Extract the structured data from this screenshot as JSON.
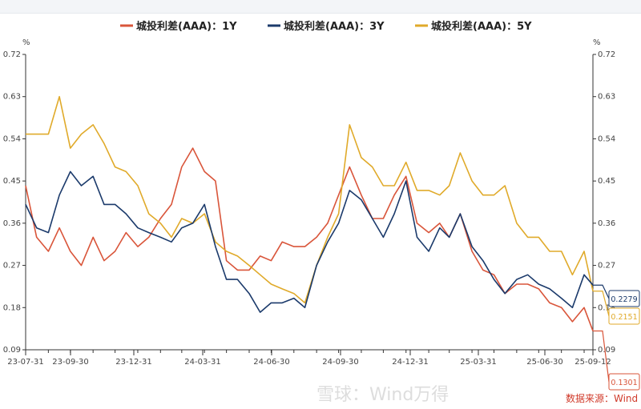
{
  "chart_data": {
    "type": "line",
    "title": "",
    "ylabel_left": "%",
    "ylabel_right": "%",
    "ylim": [
      0.09,
      0.72
    ],
    "yticks": [
      "0.09",
      "0.18",
      "0.27",
      "0.36",
      "0.45",
      "0.54",
      "0.63",
      "0.72"
    ],
    "xtick_labels": [
      "23-07-31",
      "23-09-30",
      "23-12-31",
      "24-03-31",
      "24-06-30",
      "24-09-30",
      "24-12-31",
      "25-03-31",
      "25-06-30",
      "25-09-12"
    ],
    "legend_position": "top",
    "grid": false,
    "x": [
      "2023-07-31",
      "2023-08-15",
      "2023-08-31",
      "2023-09-15",
      "2023-09-30",
      "2023-10-15",
      "2023-10-31",
      "2023-11-15",
      "2023-11-30",
      "2023-12-15",
      "2023-12-31",
      "2024-01-15",
      "2024-01-31",
      "2024-02-15",
      "2024-02-29",
      "2024-03-15",
      "2024-03-31",
      "2024-04-15",
      "2024-04-30",
      "2024-05-15",
      "2024-05-31",
      "2024-06-15",
      "2024-06-30",
      "2024-07-15",
      "2024-07-31",
      "2024-08-15",
      "2024-08-31",
      "2024-09-15",
      "2024-09-30",
      "2024-10-15",
      "2024-10-31",
      "2024-11-15",
      "2024-11-30",
      "2024-12-15",
      "2024-12-31",
      "2025-01-15",
      "2025-01-31",
      "2025-02-15",
      "2025-02-28",
      "2025-03-15",
      "2025-03-31",
      "2025-04-15",
      "2025-04-30",
      "2025-05-15",
      "2025-05-31",
      "2025-06-15",
      "2025-06-30",
      "2025-07-15",
      "2025-07-31",
      "2025-08-15",
      "2025-08-31",
      "2025-09-12"
    ],
    "series": [
      {
        "name": "城投利差(AAA)：1Y",
        "color": "#d9553a",
        "last_label": "0.1301",
        "values": [
          0.44,
          0.33,
          0.3,
          0.35,
          0.3,
          0.27,
          0.33,
          0.28,
          0.3,
          0.34,
          0.31,
          0.33,
          0.37,
          0.4,
          0.48,
          0.52,
          0.47,
          0.45,
          0.28,
          0.26,
          0.26,
          0.29,
          0.28,
          0.32,
          0.31,
          0.31,
          0.33,
          0.36,
          0.42,
          0.48,
          0.42,
          0.37,
          0.37,
          0.42,
          0.46,
          0.36,
          0.34,
          0.36,
          0.33,
          0.38,
          0.3,
          0.26,
          0.25,
          0.21,
          0.23,
          0.23,
          0.22,
          0.19,
          0.18,
          0.15,
          0.18,
          0.1301
        ]
      },
      {
        "name": "城投利差(AAA)：3Y",
        "color": "#1b3a6b",
        "last_label": "0.2279",
        "values": [
          0.4,
          0.35,
          0.34,
          0.42,
          0.47,
          0.44,
          0.46,
          0.4,
          0.4,
          0.38,
          0.35,
          0.34,
          0.33,
          0.32,
          0.35,
          0.36,
          0.4,
          0.31,
          0.24,
          0.24,
          0.21,
          0.17,
          0.19,
          0.19,
          0.2,
          0.18,
          0.27,
          0.32,
          0.36,
          0.43,
          0.41,
          0.37,
          0.33,
          0.38,
          0.45,
          0.33,
          0.3,
          0.35,
          0.33,
          0.38,
          0.31,
          0.28,
          0.24,
          0.21,
          0.24,
          0.25,
          0.23,
          0.22,
          0.2,
          0.18,
          0.25,
          0.2279
        ]
      },
      {
        "name": "城投利差(AAA)：5Y",
        "color": "#e0aa2a",
        "last_label": "0.2151",
        "values": [
          0.55,
          0.55,
          0.55,
          0.63,
          0.52,
          0.55,
          0.57,
          0.53,
          0.48,
          0.47,
          0.44,
          0.38,
          0.36,
          0.33,
          0.37,
          0.36,
          0.38,
          0.32,
          0.3,
          0.29,
          0.27,
          0.25,
          0.23,
          0.22,
          0.21,
          0.19,
          0.27,
          0.33,
          0.38,
          0.57,
          0.5,
          0.48,
          0.44,
          0.44,
          0.49,
          0.43,
          0.43,
          0.42,
          0.44,
          0.51,
          0.45,
          0.42,
          0.42,
          0.44,
          0.36,
          0.33,
          0.33,
          0.3,
          0.3,
          0.25,
          0.3,
          0.2151
        ]
      }
    ],
    "source": "数据来源：Wind",
    "watermark": "雪球：Wind万得"
  }
}
